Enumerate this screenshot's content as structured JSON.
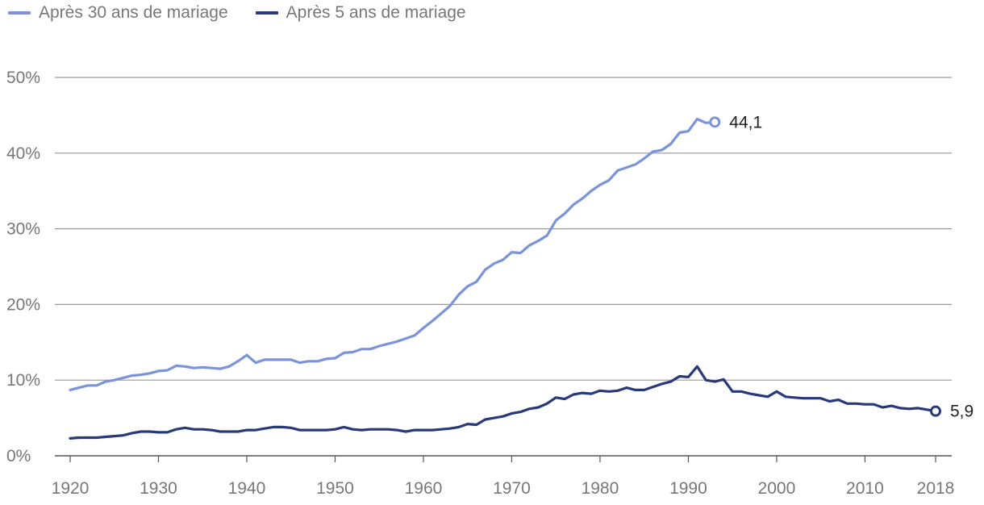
{
  "chart_data": {
    "type": "line",
    "title": "",
    "xlabel": "",
    "ylabel": "",
    "xlim": [
      1920,
      2018
    ],
    "ylim": [
      0,
      50
    ],
    "y_ticks": [
      0,
      10,
      20,
      30,
      40,
      50
    ],
    "y_tick_labels": [
      "0%",
      "10%",
      "20%",
      "30%",
      "40%",
      "50%"
    ],
    "x_ticks": [
      1920,
      1930,
      1940,
      1950,
      1960,
      1970,
      1980,
      1990,
      2000,
      2010,
      2018
    ],
    "x_tick_labels": [
      "1920",
      "1930",
      "1940",
      "1950",
      "1960",
      "1970",
      "1980",
      "1990",
      "2000",
      "2010",
      "2018"
    ],
    "grid": "horizontal",
    "legend_position": "top-left",
    "series": [
      {
        "name": "Après 30 ans de mariage",
        "color": "#7b93d9",
        "end_label": "44,1",
        "x": [
          1920,
          1921,
          1922,
          1923,
          1924,
          1925,
          1926,
          1927,
          1928,
          1929,
          1930,
          1931,
          1932,
          1933,
          1934,
          1935,
          1936,
          1937,
          1938,
          1939,
          1940,
          1941,
          1942,
          1943,
          1944,
          1945,
          1946,
          1947,
          1948,
          1949,
          1950,
          1951,
          1952,
          1953,
          1954,
          1955,
          1956,
          1957,
          1958,
          1959,
          1960,
          1961,
          1962,
          1963,
          1964,
          1965,
          1966,
          1967,
          1968,
          1969,
          1970,
          1971,
          1972,
          1973,
          1974,
          1975,
          1976,
          1977,
          1978,
          1979,
          1980,
          1981,
          1982,
          1983,
          1984,
          1985,
          1986,
          1987,
          1988,
          1989,
          1990,
          1991,
          1992,
          1993
        ],
        "y": [
          8.7,
          9.0,
          9.3,
          9.3,
          9.8,
          10.0,
          10.3,
          10.6,
          10.7,
          10.9,
          11.2,
          11.3,
          11.9,
          11.8,
          11.6,
          11.7,
          11.6,
          11.5,
          11.8,
          12.5,
          13.3,
          12.3,
          12.7,
          12.7,
          12.7,
          12.7,
          12.3,
          12.5,
          12.5,
          12.8,
          12.9,
          13.6,
          13.7,
          14.1,
          14.1,
          14.5,
          14.8,
          15.1,
          15.5,
          15.9,
          16.9,
          17.8,
          18.8,
          19.8,
          21.3,
          22.4,
          23.0,
          24.6,
          25.4,
          25.9,
          26.9,
          26.8,
          27.8,
          28.4,
          29.1,
          31.1,
          32.0,
          33.2,
          34.0,
          35.0,
          35.8,
          36.4,
          37.7,
          38.1,
          38.5,
          39.3,
          40.2,
          40.4,
          41.2,
          42.7,
          42.9,
          44.5,
          44.0,
          44.1
        ]
      },
      {
        "name": "Après 5 ans de mariage",
        "color": "#27397a",
        "end_label": "5,9",
        "x": [
          1920,
          1921,
          1922,
          1923,
          1924,
          1925,
          1926,
          1927,
          1928,
          1929,
          1930,
          1931,
          1932,
          1933,
          1934,
          1935,
          1936,
          1937,
          1938,
          1939,
          1940,
          1941,
          1942,
          1943,
          1944,
          1945,
          1946,
          1947,
          1948,
          1949,
          1950,
          1951,
          1952,
          1953,
          1954,
          1955,
          1956,
          1957,
          1958,
          1959,
          1960,
          1961,
          1962,
          1963,
          1964,
          1965,
          1966,
          1967,
          1968,
          1969,
          1970,
          1971,
          1972,
          1973,
          1974,
          1975,
          1976,
          1977,
          1978,
          1979,
          1980,
          1981,
          1982,
          1983,
          1984,
          1985,
          1986,
          1987,
          1988,
          1989,
          1990,
          1991,
          1992,
          1993,
          1994,
          1995,
          1996,
          1997,
          1998,
          1999,
          2000,
          2001,
          2002,
          2003,
          2004,
          2005,
          2006,
          2007,
          2008,
          2009,
          2010,
          2011,
          2012,
          2013,
          2014,
          2015,
          2016,
          2017,
          2018
        ],
        "y": [
          2.3,
          2.4,
          2.4,
          2.4,
          2.5,
          2.6,
          2.7,
          3.0,
          3.2,
          3.2,
          3.1,
          3.1,
          3.5,
          3.7,
          3.5,
          3.5,
          3.4,
          3.2,
          3.2,
          3.2,
          3.4,
          3.4,
          3.6,
          3.8,
          3.8,
          3.7,
          3.4,
          3.4,
          3.4,
          3.4,
          3.5,
          3.8,
          3.5,
          3.4,
          3.5,
          3.5,
          3.5,
          3.4,
          3.2,
          3.4,
          3.4,
          3.4,
          3.5,
          3.6,
          3.8,
          4.2,
          4.1,
          4.8,
          5.0,
          5.2,
          5.6,
          5.8,
          6.2,
          6.4,
          6.9,
          7.7,
          7.5,
          8.1,
          8.3,
          8.2,
          8.6,
          8.5,
          8.6,
          9.0,
          8.7,
          8.7,
          9.1,
          9.5,
          9.8,
          10.5,
          10.4,
          11.8,
          10.0,
          9.8,
          10.1,
          8.5,
          8.5,
          8.2,
          8.0,
          7.8,
          8.5,
          7.8,
          7.7,
          7.6,
          7.6,
          7.6,
          7.2,
          7.4,
          6.9,
          6.9,
          6.8,
          6.8,
          6.4,
          6.6,
          6.3,
          6.2,
          6.3,
          6.1,
          5.9
        ]
      }
    ]
  }
}
